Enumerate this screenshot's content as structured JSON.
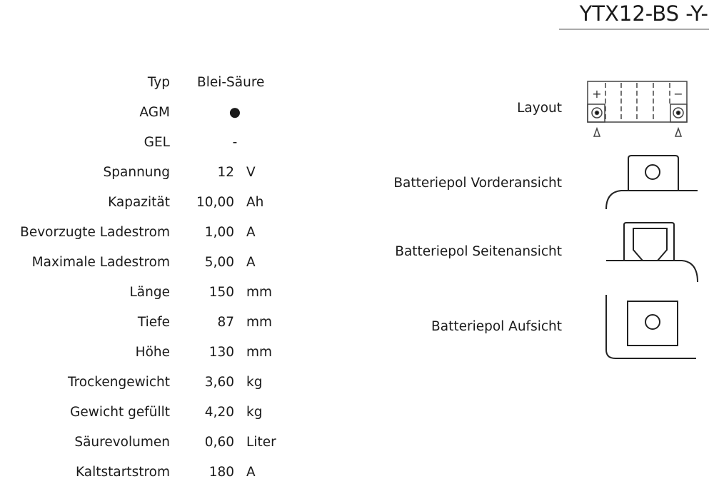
{
  "title": "YTX12-BS -Y-",
  "specs": [
    {
      "label": "Typ",
      "value": "Blei-Säure",
      "unit": ""
    },
    {
      "label": "AGM",
      "value": "●",
      "unit": ""
    },
    {
      "label": "GEL",
      "value": "-",
      "unit": ""
    },
    {
      "label": "Spannung",
      "value": "12",
      "unit": "V"
    },
    {
      "label": "Kapazität",
      "value": "10,00",
      "unit": "Ah"
    },
    {
      "label": "Bevorzugte Ladestrom",
      "value": "1,00",
      "unit": "A"
    },
    {
      "label": "Maximale Ladestrom",
      "value": "5,00",
      "unit": "A"
    },
    {
      "label": "Länge",
      "value": "150",
      "unit": "mm"
    },
    {
      "label": "Tiefe",
      "value": "87",
      "unit": "mm"
    },
    {
      "label": "Höhe",
      "value": "130",
      "unit": "mm"
    },
    {
      "label": "Trockengewicht",
      "value": "3,60",
      "unit": "kg"
    },
    {
      "label": "Gewicht gefüllt",
      "value": "4,20",
      "unit": "kg"
    },
    {
      "label": "Säurevolumen",
      "value": "0,60",
      "unit": "Liter"
    },
    {
      "label": "Kaltstartstrom",
      "value": "180",
      "unit": "A"
    }
  ],
  "diagrams": {
    "layout": "Layout",
    "front": "Batteriepol Vorderansicht",
    "side": "Batteriepol Seitenansicht",
    "top": "Batteriepol Aufsicht",
    "plus": "+",
    "minus": "−"
  }
}
